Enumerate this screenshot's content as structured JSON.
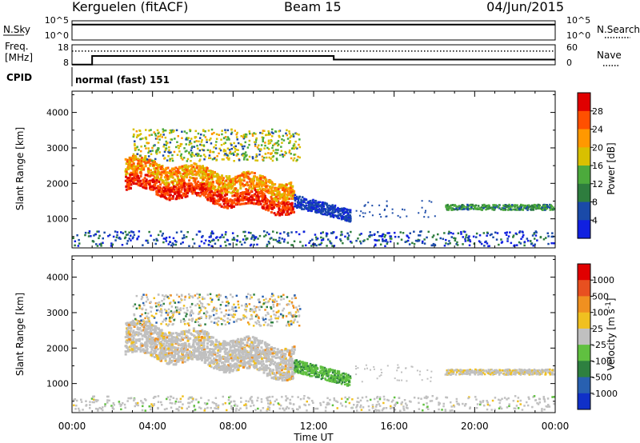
{
  "header": {
    "station": "Kerguelen (fitACF)",
    "beam": "Beam 15",
    "date": "04/Jun/2015"
  },
  "nsky_panel": {
    "left_label": "N.Sky",
    "left_ticks": [
      "10^5",
      "10^0"
    ],
    "right_label": "N.Search",
    "right_ticks": [
      "10^5",
      "10^0"
    ]
  },
  "freq_panel": {
    "left_label_1": "Freq.",
    "left_label_2": "[MHz]",
    "left_ticks": [
      "18",
      "8"
    ],
    "right_label": "Nave",
    "right_ticks": [
      "60",
      "0"
    ]
  },
  "cpid": {
    "label": "CPID",
    "value": "normal (fast) 151"
  },
  "xaxis": {
    "label": "Time UT",
    "ticks": [
      "00:00",
      "04:00",
      "08:00",
      "12:00",
      "16:00",
      "20:00",
      "00:00"
    ]
  },
  "chart_data": [
    {
      "type": "line",
      "title": "N.Sky / N.Search",
      "x_hours": [
        0,
        24
      ],
      "series": [
        {
          "name": "N.Sky",
          "values_log10": [
            4.0,
            4.0
          ]
        }
      ]
    },
    {
      "type": "line",
      "title": "Freq. / Nave",
      "x_hours": [
        0,
        1.0,
        1.0,
        13.0,
        13.0,
        24
      ],
      "series": [
        {
          "name": "Freq.",
          "unit": "MHz",
          "values": [
            8.1,
            8.1,
            12.4,
            12.4,
            10.6,
            10.6
          ]
        },
        {
          "name": "Nave",
          "values": [
            41,
            41,
            41,
            41,
            41,
            41
          ]
        }
      ],
      "ylim_left": [
        8,
        18
      ],
      "ylim_right": [
        0,
        60
      ]
    },
    {
      "type": "heatmap",
      "parameter": "Power",
      "ylabel": "Slant Range [km]",
      "yticks": [
        1000,
        2000,
        3000,
        4000
      ],
      "xlim_hours": [
        0,
        24
      ],
      "ylim_km": [
        180,
        4600
      ],
      "colorbar": {
        "label": "Power [dB]",
        "ticks": [
          "4",
          "8",
          "12",
          "16",
          "20",
          "24",
          "28"
        ],
        "colors": [
          "#1020e0",
          "#1a4aa8",
          "#2e7d3e",
          "#4caa3c",
          "#d8c000",
          "#ff9800",
          "#ff5000",
          "#e00000"
        ]
      }
    },
    {
      "type": "heatmap",
      "parameter": "Velocity",
      "ylabel": "Slant Range [km]",
      "yticks": [
        1000,
        2000,
        3000,
        4000
      ],
      "xlim_hours": [
        0,
        24
      ],
      "ylim_km": [
        180,
        4600
      ],
      "colorbar": {
        "label": "Velocity [m s-1]",
        "ticks": [
          "1000",
          "500",
          "100",
          "25",
          "-25",
          "-100",
          "-500",
          "-1000"
        ],
        "colors": [
          "#1030c8",
          "#2860b0",
          "#2e8040",
          "#60c040",
          "#c0c0c0",
          "#f0c020",
          "#f09020",
          "#e85020",
          "#e00000"
        ]
      }
    }
  ]
}
